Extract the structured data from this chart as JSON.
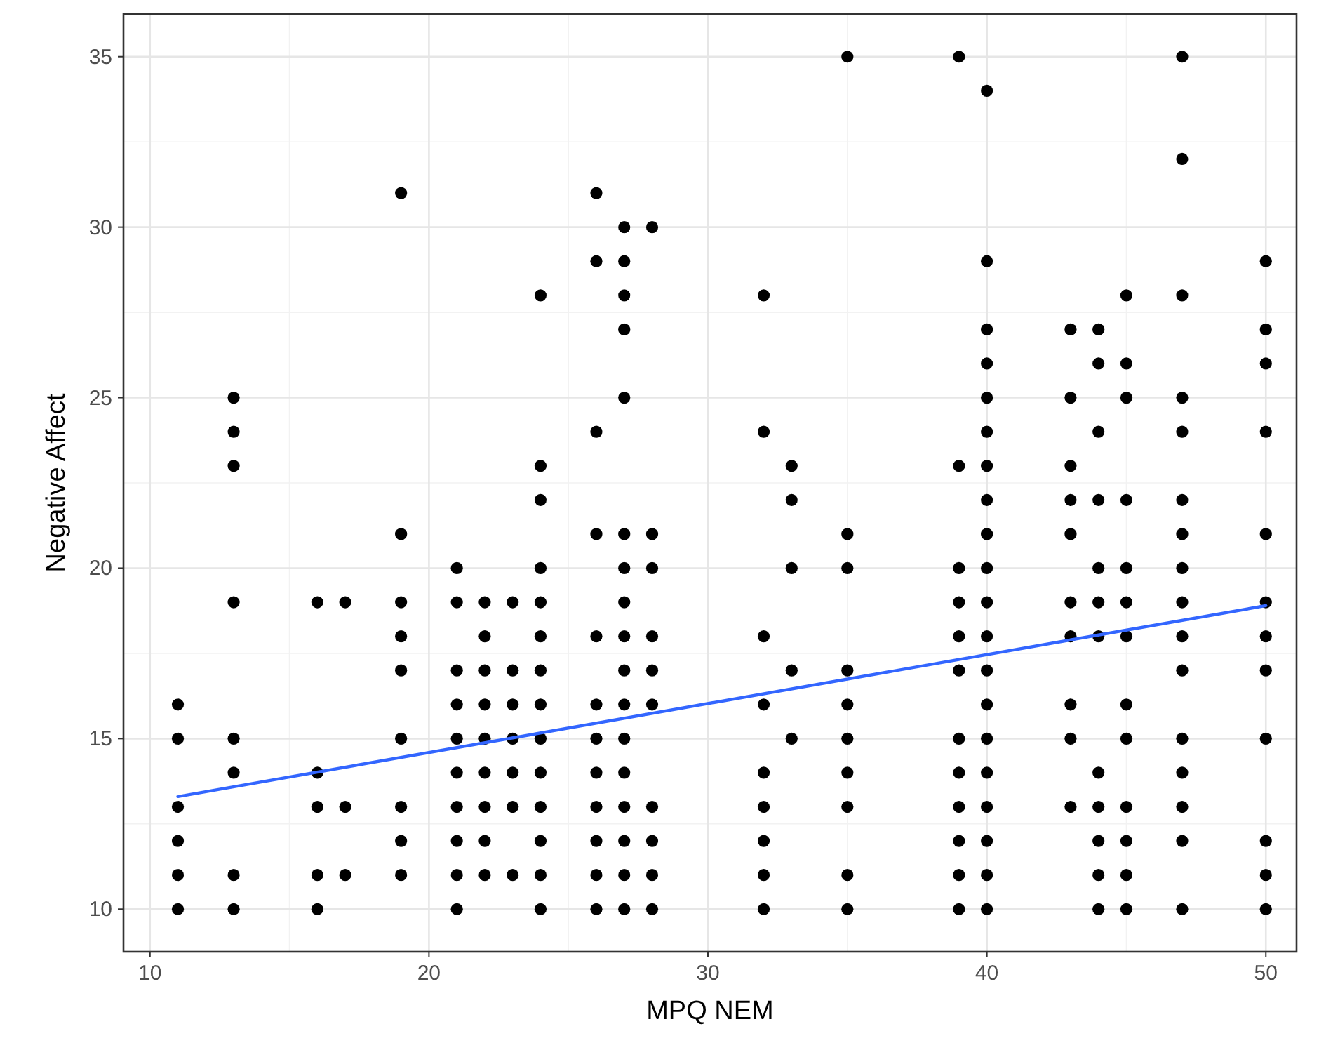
{
  "chart_data": {
    "type": "scatter",
    "xlabel": "MPQ NEM",
    "ylabel": "Negative Affect",
    "xlim": [
      9.05,
      51.1
    ],
    "ylim": [
      8.75,
      36.25
    ],
    "xticks": [
      10,
      20,
      30,
      40,
      50
    ],
    "yticks": [
      10,
      15,
      20,
      25,
      30,
      35
    ],
    "grid": true,
    "marker": "circle",
    "series": [
      {
        "type": "scatter",
        "color": "#000000",
        "x": [
          11,
          11,
          11,
          11,
          11,
          11,
          13,
          13,
          13,
          13,
          13,
          13,
          13,
          13,
          16,
          16,
          16,
          16,
          16,
          17,
          17,
          17,
          19,
          19,
          19,
          19,
          19,
          19,
          19,
          19,
          19,
          21,
          21,
          21,
          21,
          21,
          21,
          21,
          21,
          21,
          21,
          22,
          22,
          22,
          22,
          22,
          22,
          22,
          22,
          22,
          23,
          23,
          23,
          23,
          23,
          23,
          23,
          24,
          24,
          24,
          24,
          24,
          24,
          24,
          24,
          24,
          24,
          24,
          24,
          24,
          24,
          26,
          26,
          26,
          26,
          26,
          26,
          26,
          26,
          26,
          26,
          26,
          26,
          27,
          27,
          27,
          27,
          27,
          27,
          27,
          27,
          27,
          27,
          27,
          27,
          27,
          27,
          27,
          27,
          27,
          28,
          28,
          28,
          28,
          28,
          28,
          28,
          28,
          28,
          28,
          32,
          32,
          32,
          32,
          32,
          32,
          32,
          32,
          32,
          33,
          33,
          33,
          33,
          33,
          35,
          35,
          35,
          35,
          35,
          35,
          35,
          35,
          35,
          35,
          39,
          39,
          39,
          39,
          39,
          39,
          39,
          39,
          39,
          39,
          39,
          39,
          40,
          40,
          40,
          40,
          40,
          40,
          40,
          40,
          40,
          40,
          40,
          40,
          40,
          40,
          40,
          40,
          40,
          40,
          40,
          40,
          43,
          43,
          43,
          43,
          43,
          43,
          43,
          43,
          43,
          43,
          44,
          44,
          44,
          44,
          44,
          44,
          44,
          44,
          44,
          44,
          44,
          44,
          45,
          45,
          45,
          45,
          45,
          45,
          45,
          45,
          45,
          45,
          45,
          45,
          45,
          47,
          47,
          47,
          47,
          47,
          47,
          47,
          47,
          47,
          47,
          47,
          47,
          47,
          47,
          47,
          47,
          50,
          50,
          50,
          50,
          50,
          50,
          50,
          50,
          50,
          50,
          50,
          50
        ],
        "values": [
          16,
          15,
          13,
          12,
          11,
          10,
          25,
          24,
          23,
          19,
          15,
          14,
          11,
          10,
          19,
          14,
          13,
          11,
          10,
          19,
          13,
          11,
          31,
          21,
          19,
          18,
          17,
          15,
          13,
          12,
          11,
          20,
          19,
          17,
          16,
          15,
          14,
          13,
          12,
          11,
          10,
          19,
          18,
          17,
          16,
          15,
          14,
          13,
          12,
          11,
          19,
          17,
          16,
          15,
          14,
          13,
          11,
          28,
          23,
          22,
          20,
          19,
          18,
          17,
          16,
          15,
          14,
          13,
          12,
          11,
          10,
          31,
          29,
          24,
          21,
          18,
          16,
          15,
          14,
          13,
          12,
          11,
          10,
          30,
          29,
          28,
          27,
          25,
          21,
          20,
          19,
          18,
          17,
          16,
          15,
          14,
          13,
          12,
          11,
          10,
          30,
          21,
          20,
          18,
          17,
          16,
          13,
          12,
          11,
          10,
          28,
          24,
          18,
          16,
          14,
          13,
          12,
          11,
          10,
          23,
          22,
          20,
          17,
          15,
          35,
          21,
          20,
          17,
          16,
          15,
          14,
          13,
          11,
          10,
          35,
          23,
          20,
          19,
          18,
          17,
          15,
          14,
          13,
          12,
          11,
          10,
          34,
          29,
          27,
          26,
          25,
          24,
          23,
          22,
          21,
          20,
          19,
          18,
          17,
          16,
          15,
          14,
          13,
          12,
          11,
          10,
          27,
          25,
          23,
          22,
          21,
          19,
          18,
          16,
          15,
          13,
          27,
          26,
          24,
          22,
          20,
          19,
          18,
          14,
          13,
          12,
          11,
          10,
          28,
          26,
          25,
          22,
          20,
          19,
          18,
          16,
          15,
          13,
          12,
          11,
          10,
          35,
          32,
          28,
          25,
          24,
          22,
          21,
          20,
          19,
          18,
          17,
          15,
          14,
          13,
          12,
          10,
          29,
          27,
          26,
          24,
          21,
          19,
          18,
          17,
          15,
          12,
          11,
          10
        ]
      },
      {
        "type": "line",
        "color": "#3366ff",
        "marker": "none",
        "line_style": "solid",
        "x": [
          11,
          50
        ],
        "values": [
          13.3,
          18.9
        ]
      }
    ]
  }
}
